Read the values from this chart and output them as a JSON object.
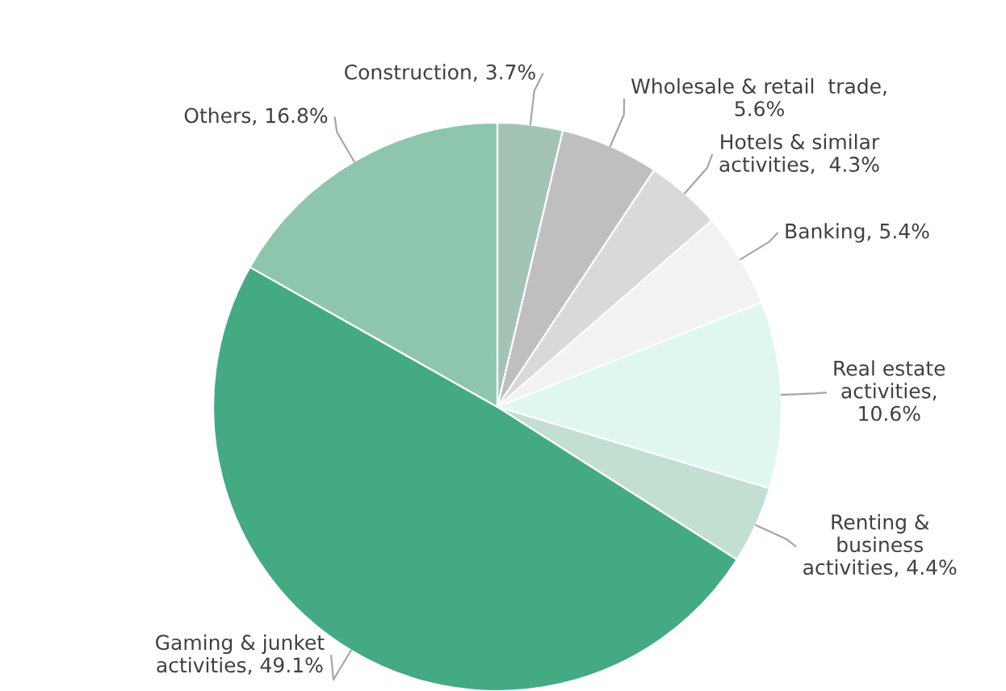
{
  "chart_data": {
    "type": "pie",
    "categories": [
      "Construction, 3.7%",
      "Wholesale & retail  trade,\n5.6%",
      "Hotels & similar\nactivities,  4.3%",
      "Banking, 5.4%",
      "Real estate\nactivities,\n10.6%",
      "Renting &\nbusiness\nactivities, 4.4%",
      "Gaming & junket\nactivities, 49.1%",
      "Others, 16.8%"
    ],
    "values": [
      3.7,
      5.6,
      4.3,
      5.4,
      10.6,
      4.4,
      49.1,
      16.8
    ],
    "colors": [
      "#a3c4b5",
      "#bfbfbf",
      "#d9d9d9",
      "#f2f2f2",
      "#dff7ee",
      "#c3dfd2",
      "#43aa84",
      "#8dc6ac"
    ],
    "legend": false
  }
}
